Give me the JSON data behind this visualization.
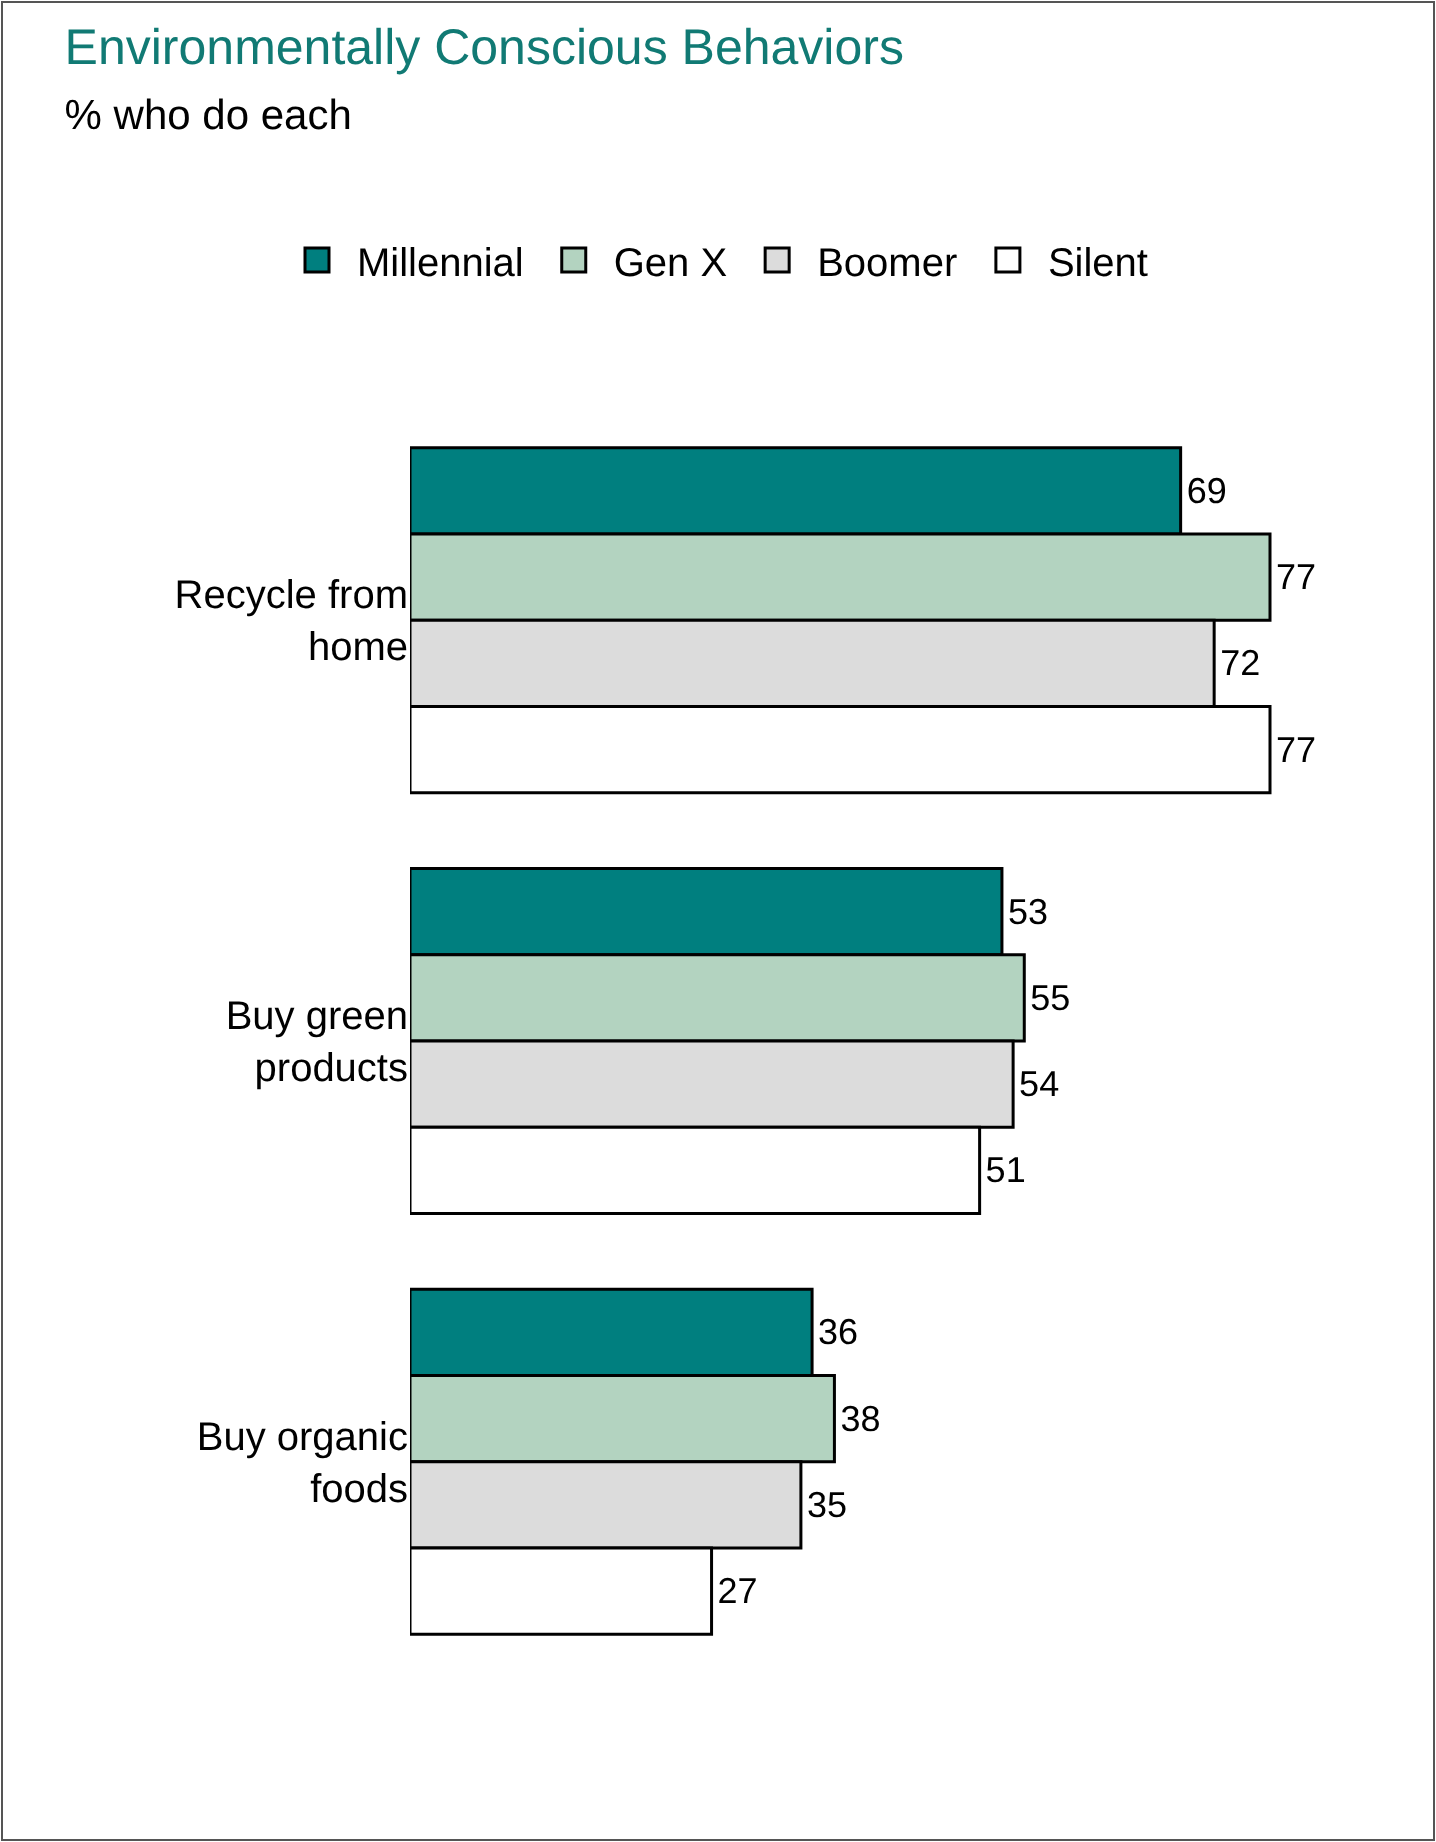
{
  "chart_data": {
    "type": "bar",
    "orientation": "horizontal",
    "title": "Environmentally Conscious Behaviors",
    "subtitle": "% who do each",
    "categories": [
      "Recycle from home",
      "Buy green products",
      "Buy organic foods"
    ],
    "series": [
      {
        "name": "Millennial",
        "color": "#007f7f",
        "values": [
          69,
          53,
          36
        ]
      },
      {
        "name": "Gen X",
        "color": "#b3d3c0",
        "values": [
          77,
          55,
          38
        ]
      },
      {
        "name": "Boomer",
        "color": "#dcdcdc",
        "values": [
          72,
          54,
          35
        ]
      },
      {
        "name": "Silent",
        "color": "#ffffff",
        "values": [
          77,
          51,
          27
        ]
      }
    ],
    "data_labels": true,
    "legend": "top",
    "tick_labels": "y"
  }
}
